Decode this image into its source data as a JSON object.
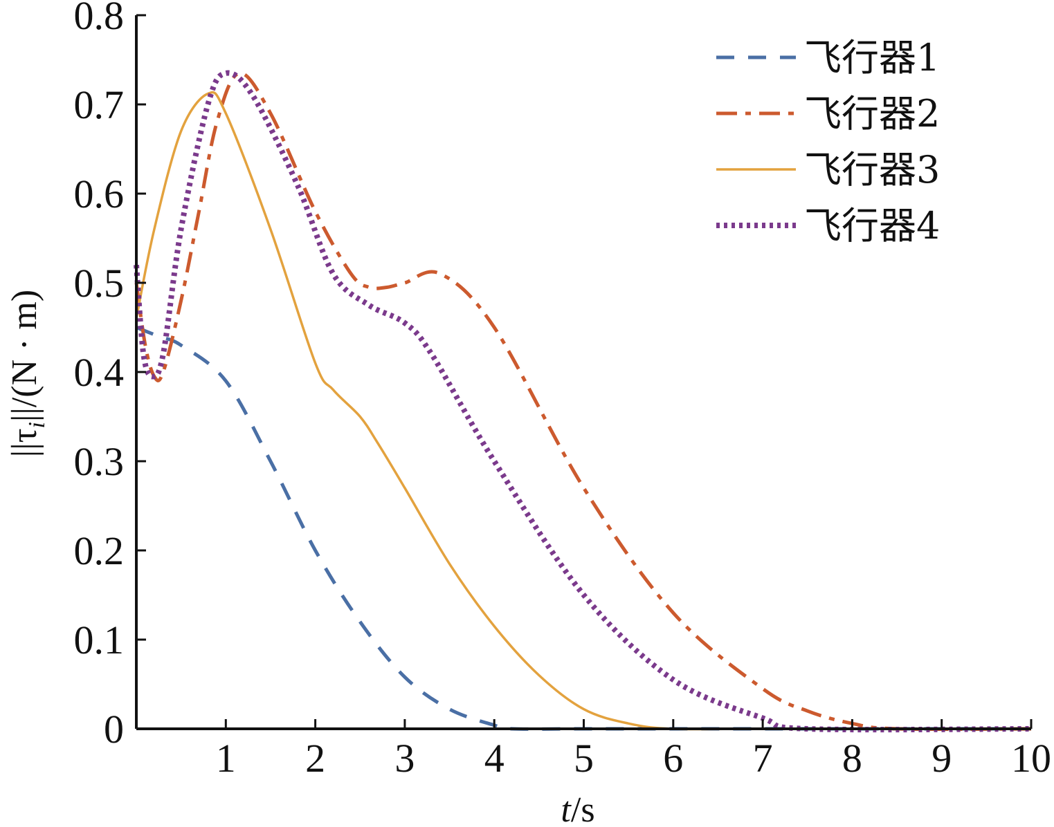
{
  "chart_data": {
    "type": "line",
    "xlabel_italic": "t",
    "xlabel_rest": "/s",
    "ylabel_prefix": "||τ",
    "ylabel_sub": "i",
    "ylabel_rest": "||/(N · m)",
    "xlim": [
      0,
      10
    ],
    "ylim": [
      0,
      0.8
    ],
    "xticks": [
      {
        "value": 1,
        "label": "1"
      },
      {
        "value": 2,
        "label": "2"
      },
      {
        "value": 3,
        "label": "3"
      },
      {
        "value": 4,
        "label": "4"
      },
      {
        "value": 5,
        "label": "5"
      },
      {
        "value": 6,
        "label": "6"
      },
      {
        "value": 7,
        "label": "7"
      },
      {
        "value": 8,
        "label": "8"
      },
      {
        "value": 9,
        "label": "9"
      },
      {
        "value": 10,
        "label": "10"
      }
    ],
    "yticks": [
      {
        "value": 0,
        "label": "0"
      },
      {
        "value": 0.1,
        "label": "0.1"
      },
      {
        "value": 0.2,
        "label": "0.2"
      },
      {
        "value": 0.3,
        "label": "0.3"
      },
      {
        "value": 0.4,
        "label": "0.4"
      },
      {
        "value": 0.5,
        "label": "0.5"
      },
      {
        "value": 0.6,
        "label": "0.6"
      },
      {
        "value": 0.7,
        "label": "0.7"
      },
      {
        "value": 0.8,
        "label": "0.8"
      }
    ],
    "grid": false,
    "legend_position": "top-right",
    "series": [
      {
        "name": "飞行器1",
        "color": "#4a6fa5",
        "dash": "dashed",
        "x": [
          0,
          0.25,
          0.5,
          1.0,
          1.5,
          2.0,
          2.5,
          3.0,
          3.5,
          4.0,
          4.2,
          5.0,
          6.0,
          10.0
        ],
        "y": [
          0.45,
          0.44,
          0.43,
          0.39,
          0.3,
          0.2,
          0.12,
          0.058,
          0.022,
          0.004,
          0.0,
          0.0,
          0.0,
          0.0
        ]
      },
      {
        "name": "飞行器2",
        "color": "#cc5a2e",
        "dash": "dashdot",
        "x": [
          0,
          0.1,
          0.2,
          0.3,
          0.5,
          0.7,
          0.9,
          1.15,
          1.5,
          2.0,
          2.4,
          2.6,
          2.8,
          3.0,
          3.4,
          4.0,
          5.0,
          6.0,
          7.0,
          7.5,
          8.0,
          8.5,
          10.0
        ],
        "y": [
          0.5,
          0.43,
          0.395,
          0.4,
          0.48,
          0.58,
          0.68,
          0.735,
          0.69,
          0.58,
          0.51,
          0.495,
          0.495,
          0.5,
          0.51,
          0.45,
          0.27,
          0.13,
          0.045,
          0.02,
          0.006,
          0.0,
          0.0
        ]
      },
      {
        "name": "飞行器3",
        "color": "#e3a23e",
        "dash": "solid",
        "x": [
          0,
          0.2,
          0.5,
          0.8,
          1.0,
          1.5,
          2.0,
          2.2,
          2.5,
          2.7,
          3.0,
          3.5,
          4.0,
          4.5,
          5.0,
          5.5,
          6.0,
          7.0,
          10.0
        ],
        "y": [
          0.46,
          0.56,
          0.67,
          0.712,
          0.69,
          0.56,
          0.41,
          0.38,
          0.35,
          0.32,
          0.27,
          0.185,
          0.115,
          0.06,
          0.022,
          0.006,
          0.0,
          0.0,
          0.0
        ]
      },
      {
        "name": "飞行器4",
        "color": "#7b3a8c",
        "dash": "dotted",
        "x": [
          0,
          0.08,
          0.18,
          0.3,
          0.5,
          0.8,
          1.0,
          1.3,
          1.8,
          2.2,
          2.6,
          3.0,
          3.3,
          4.0,
          5.0,
          6.0,
          7.0,
          7.5,
          10.0
        ],
        "y": [
          0.52,
          0.42,
          0.395,
          0.42,
          0.56,
          0.7,
          0.735,
          0.71,
          0.61,
          0.51,
          0.475,
          0.455,
          0.42,
          0.3,
          0.15,
          0.055,
          0.012,
          0.0,
          0.0
        ]
      }
    ]
  }
}
